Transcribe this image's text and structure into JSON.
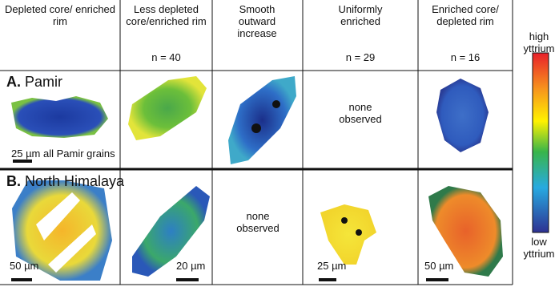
{
  "columns": [
    {
      "title": "Depleted core/ enriched rim"
    },
    {
      "title": "Less depleted core/enriched rim",
      "count": "n = 40"
    },
    {
      "title": "Smooth outward increase"
    },
    {
      "title": "Uniformly enriched",
      "count": "n = 29"
    },
    {
      "title": "Enriched core/ depleted rim",
      "count": "n = 16"
    }
  ],
  "rows": [
    {
      "letter": "A.",
      "name": "Pamir",
      "none_note": "none observed",
      "scales": [
        "25 µm all Pamir grains"
      ]
    },
    {
      "letter": "B.",
      "name": "North Himalaya",
      "none_note": "none observed",
      "scales": [
        "50 µm",
        "20 µm",
        "25 µm",
        "50 µm"
      ]
    }
  ],
  "legend": {
    "high": "high yttrium",
    "low": "low yttrium"
  }
}
